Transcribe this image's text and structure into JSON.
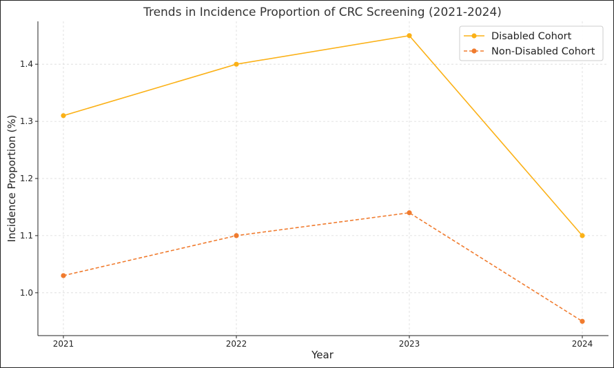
{
  "chart_data": {
    "type": "line",
    "title": "Trends in Incidence Proportion of CRC Screening (2021-2024)",
    "xlabel": "Year",
    "ylabel": "Incidence Proportion (%)",
    "categories": [
      "2021",
      "2022",
      "2023",
      "2024"
    ],
    "y_ticks": [
      "1.0",
      "1.1",
      "1.2",
      "1.3",
      "1.4"
    ],
    "ylim": [
      0.925,
      1.475
    ],
    "grid": true,
    "legend_position": "top-right",
    "series": [
      {
        "name": "Disabled Cohort",
        "values": [
          1.31,
          1.4,
          1.45,
          1.1
        ],
        "color": "#FBB117",
        "line_style": "solid",
        "marker": "circle"
      },
      {
        "name": "Non-Disabled Cohort",
        "values": [
          1.03,
          1.1,
          1.14,
          0.95
        ],
        "color": "#F07B2E",
        "line_style": "dashed",
        "marker": "circle"
      }
    ]
  }
}
